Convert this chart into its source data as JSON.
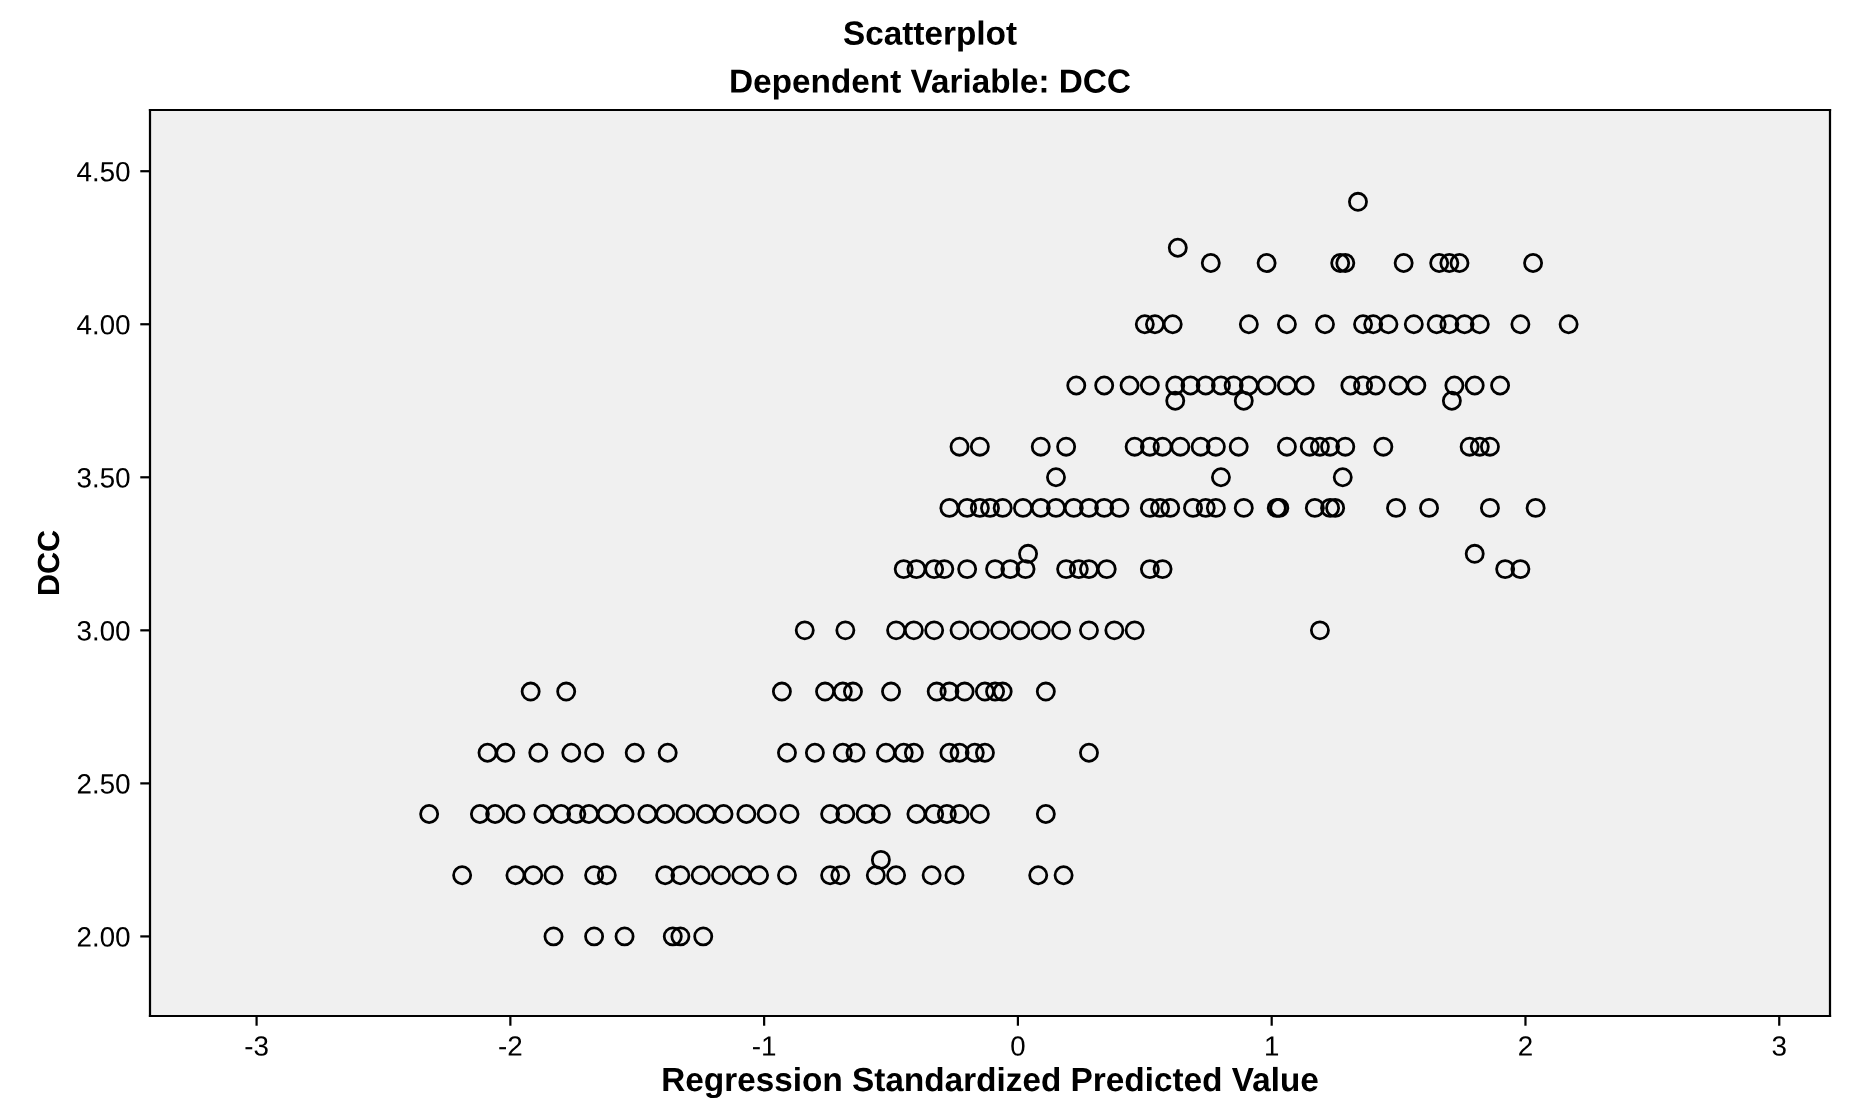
{
  "chart_data": {
    "type": "scatter",
    "title": "Scatterplot",
    "subtitle": "Dependent Variable: DCC",
    "xlabel": "Regression Standardized Predicted Value",
    "ylabel": "DCC",
    "xlim": [
      -3.42,
      3.2
    ],
    "ylim": [
      1.74,
      4.7
    ],
    "xticks": [
      -3,
      -2,
      -1,
      0,
      1,
      2,
      3
    ],
    "yticks": [
      {
        "value": 2.0,
        "label": "2.00"
      },
      {
        "value": 2.5,
        "label": "2.50"
      },
      {
        "value": 3.0,
        "label": "3.00"
      },
      {
        "value": 3.5,
        "label": "3.50"
      },
      {
        "value": 4.0,
        "label": "4.00"
      },
      {
        "value": 4.5,
        "label": "4.50"
      }
    ],
    "grid": false,
    "marker": "circle",
    "series": [
      {
        "color": "#000000",
        "x": [
          -1.83,
          -1.67,
          -1.55,
          -1.36,
          -1.33,
          -1.24,
          -2.19,
          -1.98,
          -1.91,
          -1.83,
          -1.67,
          -1.62,
          -1.39,
          -1.33,
          -1.25,
          -1.17,
          -1.09,
          -1.02,
          -0.91,
          -0.74,
          -0.7,
          -0.56,
          -0.48,
          -0.34,
          -0.25,
          0.08,
          0.18,
          -0.54,
          -2.32,
          -2.12,
          -2.06,
          -1.98,
          -1.87,
          -1.8,
          -1.74,
          -1.69,
          -1.62,
          -1.55,
          -1.46,
          -1.39,
          -1.31,
          -1.23,
          -1.16,
          -1.07,
          -0.99,
          -0.9,
          -0.74,
          -0.68,
          -0.6,
          -0.54,
          -0.4,
          -0.33,
          -0.28,
          -0.23,
          -0.15,
          0.11,
          -2.09,
          -2.02,
          -1.89,
          -1.76,
          -1.67,
          -1.51,
          -1.38,
          -0.91,
          -0.8,
          -0.69,
          -0.64,
          -0.52,
          -0.45,
          -0.41,
          -0.27,
          -0.23,
          -0.17,
          -0.13,
          0.28,
          -1.92,
          -1.78,
          -0.93,
          -0.76,
          -0.69,
          -0.65,
          -0.5,
          -0.32,
          -0.27,
          -0.21,
          -0.13,
          -0.09,
          -0.06,
          0.11,
          -0.84,
          -0.68,
          -0.48,
          -0.41,
          -0.33,
          -0.23,
          -0.15,
          -0.07,
          0.01,
          0.09,
          0.17,
          0.28,
          0.38,
          0.46,
          1.19,
          -0.45,
          -0.4,
          -0.33,
          -0.29,
          -0.2,
          -0.09,
          -0.03,
          0.03,
          0.19,
          0.24,
          0.28,
          0.35,
          0.52,
          0.57,
          1.92,
          1.98,
          0.04,
          1.8,
          -0.27,
          -0.2,
          -0.15,
          -0.11,
          -0.06,
          0.02,
          0.09,
          0.15,
          0.22,
          0.28,
          0.34,
          0.4,
          0.52,
          0.56,
          0.6,
          0.69,
          0.74,
          0.78,
          0.89,
          1.02,
          1.03,
          1.17,
          1.23,
          1.25,
          1.49,
          1.62,
          1.86,
          2.04,
          0.15,
          0.8,
          1.28,
          -0.23,
          -0.15,
          0.09,
          0.19,
          0.46,
          0.52,
          0.57,
          0.64,
          0.72,
          0.78,
          0.87,
          1.06,
          1.15,
          1.19,
          1.23,
          1.29,
          1.44,
          1.78,
          1.82,
          1.86,
          0.62,
          0.89,
          1.71,
          0.23,
          0.34,
          0.44,
          0.52,
          0.62,
          0.68,
          0.74,
          0.8,
          0.85,
          0.91,
          0.98,
          1.06,
          1.13,
          1.31,
          1.36,
          1.41,
          1.5,
          1.57,
          1.72,
          1.8,
          1.9,
          0.5,
          0.54,
          0.61,
          0.91,
          1.06,
          1.21,
          1.36,
          1.4,
          1.46,
          1.56,
          1.65,
          1.7,
          1.76,
          1.82,
          1.98,
          2.17,
          0.76,
          0.98,
          1.27,
          1.29,
          1.52,
          1.66,
          1.7,
          1.74,
          2.03,
          0.63,
          1.34
        ],
        "values": [
          2.0,
          2.0,
          2.0,
          2.0,
          2.0,
          2.0,
          2.2,
          2.2,
          2.2,
          2.2,
          2.2,
          2.2,
          2.2,
          2.2,
          2.2,
          2.2,
          2.2,
          2.2,
          2.2,
          2.2,
          2.2,
          2.2,
          2.2,
          2.2,
          2.2,
          2.2,
          2.2,
          2.25,
          2.4,
          2.4,
          2.4,
          2.4,
          2.4,
          2.4,
          2.4,
          2.4,
          2.4,
          2.4,
          2.4,
          2.4,
          2.4,
          2.4,
          2.4,
          2.4,
          2.4,
          2.4,
          2.4,
          2.4,
          2.4,
          2.4,
          2.4,
          2.4,
          2.4,
          2.4,
          2.4,
          2.4,
          2.6,
          2.6,
          2.6,
          2.6,
          2.6,
          2.6,
          2.6,
          2.6,
          2.6,
          2.6,
          2.6,
          2.6,
          2.6,
          2.6,
          2.6,
          2.6,
          2.6,
          2.6,
          2.6,
          2.8,
          2.8,
          2.8,
          2.8,
          2.8,
          2.8,
          2.8,
          2.8,
          2.8,
          2.8,
          2.8,
          2.8,
          2.8,
          2.8,
          3.0,
          3.0,
          3.0,
          3.0,
          3.0,
          3.0,
          3.0,
          3.0,
          3.0,
          3.0,
          3.0,
          3.0,
          3.0,
          3.0,
          3.0,
          3.2,
          3.2,
          3.2,
          3.2,
          3.2,
          3.2,
          3.2,
          3.2,
          3.2,
          3.2,
          3.2,
          3.2,
          3.2,
          3.2,
          3.2,
          3.2,
          3.25,
          3.25,
          3.4,
          3.4,
          3.4,
          3.4,
          3.4,
          3.4,
          3.4,
          3.4,
          3.4,
          3.4,
          3.4,
          3.4,
          3.4,
          3.4,
          3.4,
          3.4,
          3.4,
          3.4,
          3.4,
          3.4,
          3.4,
          3.4,
          3.4,
          3.4,
          3.4,
          3.4,
          3.4,
          3.4,
          3.5,
          3.5,
          3.5,
          3.6,
          3.6,
          3.6,
          3.6,
          3.6,
          3.6,
          3.6,
          3.6,
          3.6,
          3.6,
          3.6,
          3.6,
          3.6,
          3.6,
          3.6,
          3.6,
          3.6,
          3.6,
          3.6,
          3.6,
          3.75,
          3.75,
          3.75,
          3.8,
          3.8,
          3.8,
          3.8,
          3.8,
          3.8,
          3.8,
          3.8,
          3.8,
          3.8,
          3.8,
          3.8,
          3.8,
          3.8,
          3.8,
          3.8,
          3.8,
          3.8,
          3.8,
          3.8,
          3.8,
          4.0,
          4.0,
          4.0,
          4.0,
          4.0,
          4.0,
          4.0,
          4.0,
          4.0,
          4.0,
          4.0,
          4.0,
          4.0,
          4.0,
          4.0,
          4.0,
          4.2,
          4.2,
          4.2,
          4.2,
          4.2,
          4.2,
          4.2,
          4.2,
          4.2,
          4.25,
          4.4
        ]
      }
    ]
  }
}
